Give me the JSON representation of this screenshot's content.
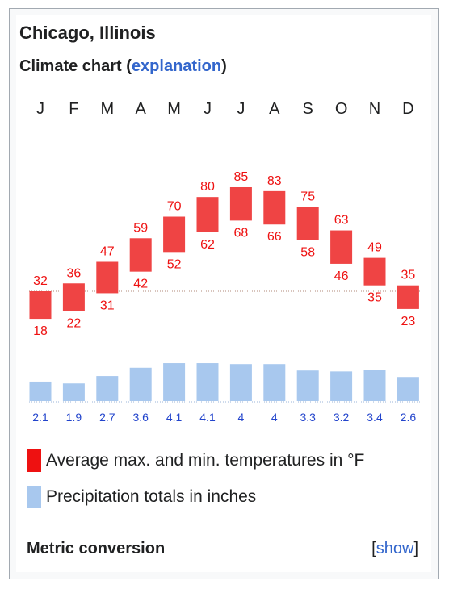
{
  "location": "Chicago, Illinois",
  "chart_heading": {
    "prefix": "Climate chart (",
    "link": "explanation",
    "suffix": ")"
  },
  "legend": {
    "temperature": "Average max. and min. temperatures in °F",
    "precipitation": "Precipitation totals in inches"
  },
  "metric": {
    "label": "Metric conversion",
    "bracket_open": "[",
    "show": "show",
    "bracket_close": "]"
  },
  "colors": {
    "temp_bar": "#ef4444",
    "temp_text": "#ee1111",
    "precip_bar": "#a8c8ee",
    "precip_text": "#2244cc",
    "link": "#3366cc"
  },
  "chart_data": {
    "type": "bar",
    "categories": [
      "J",
      "F",
      "M",
      "A",
      "M",
      "J",
      "J",
      "A",
      "S",
      "O",
      "N",
      "D"
    ],
    "series": [
      {
        "name": "Average max. and min. temperatures in °F (max)",
        "values": [
          32,
          36,
          47,
          59,
          70,
          80,
          85,
          83,
          75,
          63,
          49,
          35
        ]
      },
      {
        "name": "Average max. and min. temperatures in °F (min)",
        "values": [
          18,
          22,
          31,
          42,
          52,
          62,
          68,
          66,
          58,
          46,
          35,
          23
        ]
      },
      {
        "name": "Precipitation totals in inches",
        "values": [
          "2.1",
          "1.9",
          "2.7",
          "3.6",
          "4.1",
          "4.1",
          "4",
          "4",
          "3.3",
          "3.2",
          "3.4",
          "2.6"
        ]
      }
    ]
  }
}
